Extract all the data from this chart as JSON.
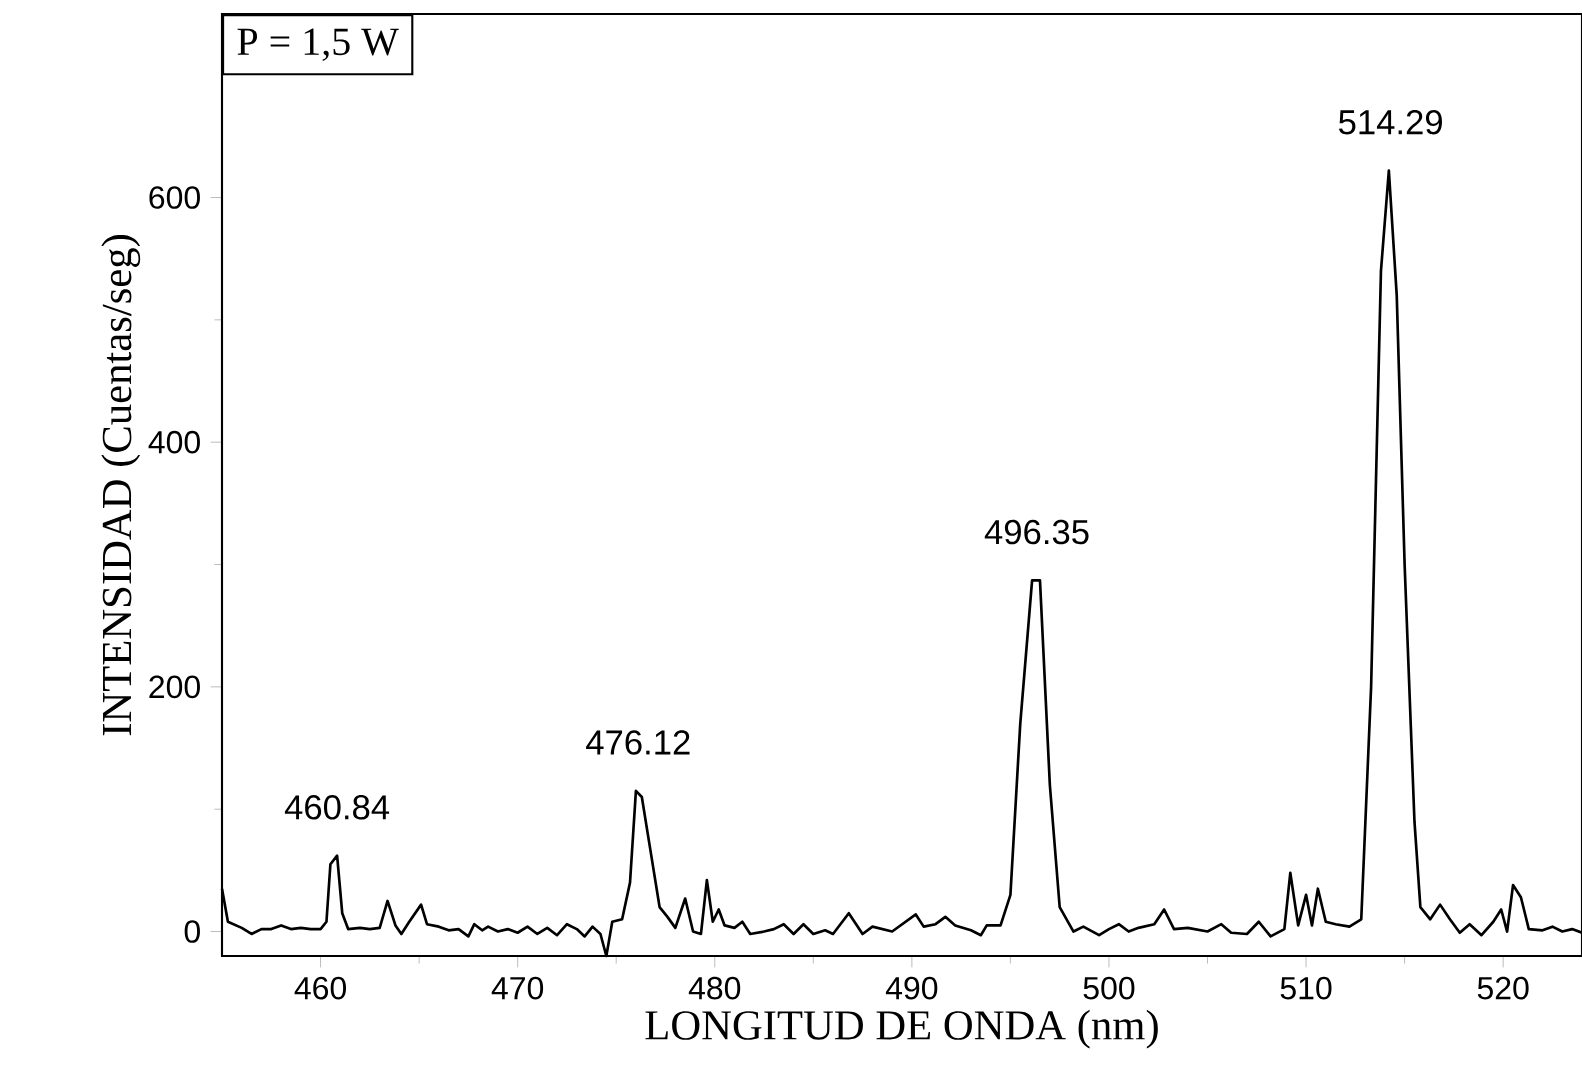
{
  "chart_data": {
    "type": "line",
    "xlabel": "LONGITUD DE ONDA (nm)",
    "ylabel": "INTENSIDAD (Cuentas/seg)",
    "annotations": [
      "P = 1,5 W",
      {
        "text": "460.84",
        "x": 460.84,
        "y": 62
      },
      {
        "text": "476.12",
        "x": 476.12,
        "y": 115
      },
      {
        "text": "496.35",
        "x": 496.35,
        "y": 287
      },
      {
        "text": "514.29",
        "x": 514.29,
        "y": 622
      }
    ],
    "xlim": [
      455,
      524
    ],
    "ylim": [
      -20,
      750
    ],
    "xticks": [
      460,
      470,
      480,
      490,
      500,
      510,
      520
    ],
    "yticks": [
      0,
      200,
      400,
      600
    ],
    "marker": "none",
    "line_style": "solid",
    "series": [
      {
        "color": "#000000",
        "x": [
          455,
          455.3,
          456,
          456.5,
          457,
          457.5,
          458,
          458.5,
          459,
          459.5,
          460,
          460.3,
          460.5,
          460.84,
          461.1,
          461.4,
          462,
          462.5,
          463,
          463.4,
          463.8,
          464.1,
          464.5,
          465.1,
          465.4,
          466,
          466.5,
          467,
          467.5,
          467.8,
          468.2,
          468.5,
          469,
          469.5,
          470,
          470.5,
          471,
          471.5,
          472,
          472.5,
          473,
          473.4,
          473.8,
          474.2,
          474.5,
          474.8,
          475.3,
          475.7,
          476.0,
          476.3,
          476.7,
          477.2,
          477.6,
          478,
          478.5,
          478.9,
          479.3,
          479.6,
          479.9,
          480.2,
          480.5,
          481,
          481.4,
          481.8,
          482.5,
          483,
          483.5,
          484,
          484.5,
          485,
          485.6,
          486,
          486.8,
          487.5,
          488,
          489,
          490.2,
          490.6,
          491.2,
          491.7,
          492.2,
          493,
          493.5,
          493.8,
          494.5,
          495,
          495.5,
          496.1,
          496.5,
          497,
          497.5,
          498.2,
          498.7,
          499.5,
          500,
          500.5,
          501,
          501.5,
          502.3,
          502.8,
          503.3,
          504,
          505,
          505.7,
          506.2,
          507,
          507.6,
          508.2,
          508.9,
          509.2,
          509.6,
          510,
          510.3,
          510.6,
          511,
          511.5,
          512.2,
          512.8,
          513.3,
          513.8,
          514.2,
          514.6,
          515,
          515.5,
          515.8,
          516.3,
          516.8,
          517.3,
          517.8,
          518.3,
          518.9,
          519.5,
          519.9,
          520.2,
          520.5,
          520.9,
          521.3,
          522,
          522.5,
          523,
          523.5,
          524
        ],
        "values": [
          35,
          8,
          3,
          -2,
          2,
          2,
          5,
          2,
          3,
          2,
          2,
          8,
          55,
          62,
          15,
          2,
          3,
          2,
          3,
          25,
          5,
          -2,
          8,
          22,
          6,
          4,
          1,
          2,
          -4,
          6,
          1,
          4,
          0,
          2,
          -1,
          4,
          -2,
          3,
          -3,
          6,
          2,
          -4,
          4,
          -2,
          -20,
          8,
          10,
          40,
          115,
          110,
          70,
          20,
          12,
          3,
          27,
          0,
          -2,
          42,
          8,
          18,
          5,
          3,
          8,
          -2,
          0,
          2,
          6,
          -2,
          6,
          -2,
          1,
          -2,
          15,
          -2,
          4,
          0,
          14,
          4,
          6,
          12,
          5,
          1,
          -3,
          5,
          5,
          30,
          170,
          287,
          287,
          120,
          20,
          0,
          4,
          -3,
          2,
          6,
          0,
          3,
          6,
          18,
          2,
          3,
          0,
          6,
          -1,
          -2,
          8,
          -4,
          2,
          48,
          5,
          30,
          5,
          35,
          8,
          6,
          4,
          10,
          200,
          540,
          622,
          520,
          300,
          90,
          20,
          10,
          22,
          10,
          -1,
          6,
          -3,
          8,
          18,
          0,
          38,
          28,
          2,
          1,
          4,
          0,
          2,
          -1
        ]
      }
    ]
  }
}
